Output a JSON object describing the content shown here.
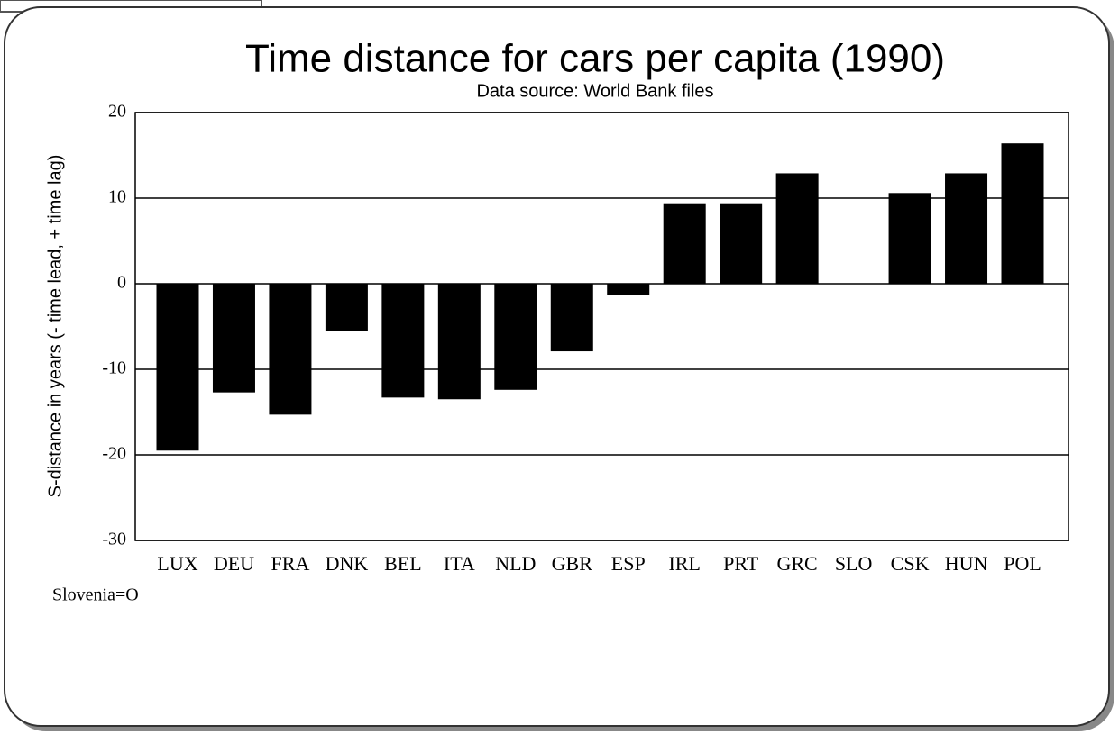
{
  "chart_data": {
    "type": "bar",
    "title": "Time distance for cars per capita (1990)",
    "subtitle": "Data source: World Bank files",
    "y_label": "S-distance in years (- time lead, + time lag)",
    "annotation": "Slovenia=O",
    "categories": [
      "LUX",
      "DEU",
      "FRA",
      "DNK",
      "BEL",
      "ITA",
      "NLD",
      "GBR",
      "ESP",
      "IRL",
      "PRT",
      "GRC",
      "SLO",
      "CSK",
      "HUN",
      "POL"
    ],
    "values": [
      -19.5,
      -12.7,
      -15.3,
      -5.5,
      -13.3,
      -13.5,
      -12.4,
      -7.9,
      -1.3,
      9.4,
      9.4,
      12.9,
      0,
      10.6,
      12.9,
      16.4
    ],
    "color": "#000000",
    "ylim": [
      -30,
      20
    ],
    "yticks": [
      -30,
      -20,
      -10,
      0,
      10,
      20
    ],
    "grid": true
  }
}
